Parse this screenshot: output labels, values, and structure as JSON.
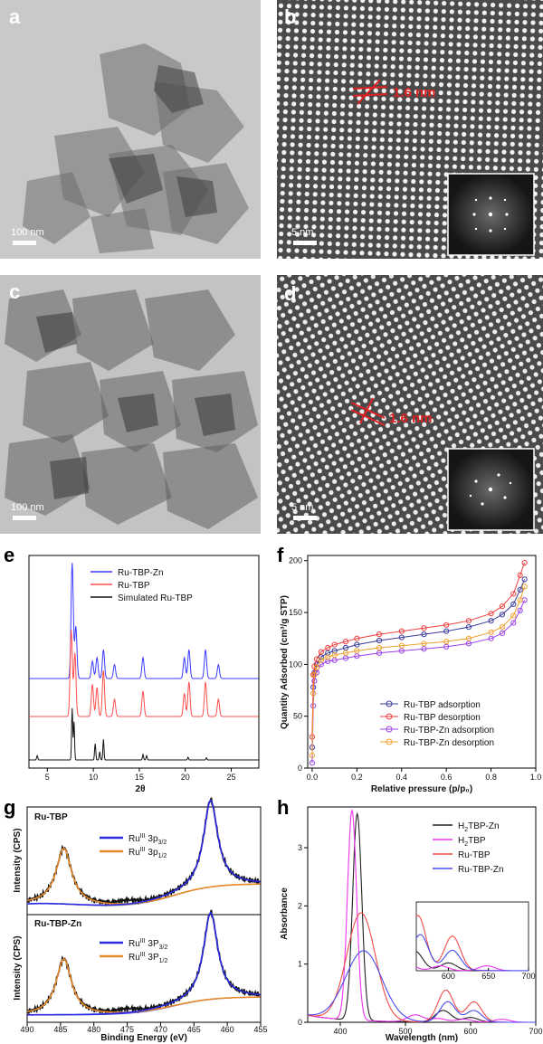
{
  "panels": {
    "a": {
      "letter": "a",
      "scale_label": "100 nm"
    },
    "b": {
      "letter": "b",
      "scale_label": "5 nm",
      "lattice_label": "1.6 nm"
    },
    "c": {
      "letter": "c",
      "scale_label": "100 nm"
    },
    "d": {
      "letter": "d",
      "scale_label": "5 nm",
      "lattice_label": "1.6 nm"
    },
    "e": {
      "letter": "e"
    },
    "f": {
      "letter": "f"
    },
    "g": {
      "letter": "g"
    },
    "h": {
      "letter": "h"
    }
  },
  "chart_data": [
    {
      "panel": "e",
      "type": "line",
      "xlabel": "2θ",
      "ylabel": "",
      "xlim": [
        3,
        28
      ],
      "xticks": [
        5,
        10,
        15,
        20,
        25
      ],
      "legend_position": "top-right",
      "series": [
        {
          "name": "Ru-TBP-Zn",
          "color": "#3b3bff",
          "offset": 2.0,
          "peaks": [
            [
              7.7,
              1.0
            ],
            [
              8.1,
              0.45
            ],
            [
              9.9,
              0.15
            ],
            [
              10.4,
              0.18
            ],
            [
              11.1,
              0.25
            ],
            [
              12.3,
              0.12
            ],
            [
              15.4,
              0.18
            ],
            [
              19.9,
              0.18
            ],
            [
              20.4,
              0.25
            ],
            [
              22.2,
              0.25
            ],
            [
              23.6,
              0.12
            ]
          ]
        },
        {
          "name": "Ru-TBP",
          "color": "#ff4d4d",
          "offset": 1.0,
          "peaks": [
            [
              7.6,
              0.75
            ],
            [
              8.0,
              0.55
            ],
            [
              9.9,
              0.28
            ],
            [
              10.4,
              0.25
            ],
            [
              11.1,
              0.4
            ],
            [
              12.3,
              0.15
            ],
            [
              15.4,
              0.22
            ],
            [
              19.9,
              0.2
            ],
            [
              20.4,
              0.3
            ],
            [
              22.2,
              0.3
            ],
            [
              23.6,
              0.15
            ]
          ]
        },
        {
          "name": "Simulated Ru-TBP",
          "color": "#111111",
          "offset": 0.0,
          "peaks": [
            [
              3.9,
              0.08
            ],
            [
              7.7,
              0.95
            ],
            [
              7.9,
              0.7
            ],
            [
              10.2,
              0.3
            ],
            [
              10.7,
              0.15
            ],
            [
              11.1,
              0.38
            ],
            [
              15.4,
              0.1
            ],
            [
              15.8,
              0.08
            ],
            [
              20.3,
              0.05
            ],
            [
              22.3,
              0.04
            ]
          ]
        }
      ]
    },
    {
      "panel": "f",
      "type": "line",
      "xlabel": "Relative pressure (p/p₀)",
      "ylabel": "Quantity Adsorbed (cm³/g STP)",
      "xlim": [
        -0.02,
        1.0
      ],
      "ylim": [
        0,
        205
      ],
      "xticks": [
        "0.0",
        "0.2",
        "0.4",
        "0.6",
        "0.8",
        "1.0"
      ],
      "yticks": [
        0,
        50,
        100,
        150,
        200
      ],
      "legend_position": "bottom-right",
      "x": [
        0.0,
        0.005,
        0.01,
        0.02,
        0.04,
        0.07,
        0.1,
        0.15,
        0.2,
        0.3,
        0.4,
        0.5,
        0.6,
        0.7,
        0.8,
        0.85,
        0.9,
        0.93,
        0.95
      ],
      "series": [
        {
          "name": "Ru-TBP adsorption",
          "color": "#3a3a9e",
          "values": [
            20,
            78,
            92,
            100,
            107,
            111,
            113,
            116,
            119,
            123,
            126,
            129,
            132,
            136,
            142,
            148,
            158,
            172,
            182
          ]
        },
        {
          "name": "Ru-TBP desorption",
          "color": "#ef3f3f",
          "values": [
            30,
            90,
            98,
            105,
            112,
            116,
            119,
            122,
            125,
            129,
            132,
            135,
            138,
            142,
            149,
            156,
            168,
            186,
            198
          ]
        },
        {
          "name": "Ru-TBP-Zn adsorption",
          "color": "#9a40e8",
          "values": [
            5,
            60,
            84,
            92,
            100,
            103,
            104,
            106,
            108,
            111,
            113,
            115,
            117,
            120,
            125,
            130,
            140,
            152,
            162
          ]
        },
        {
          "name": "Ru-TBP-Zn desorption",
          "color": "#f0a030",
          "values": [
            12,
            72,
            90,
            97,
            104,
            107,
            109,
            111,
            113,
            116,
            118,
            120,
            122,
            125,
            131,
            136,
            147,
            162,
            175
          ]
        }
      ]
    },
    {
      "panel": "g",
      "type": "line",
      "xlabel": "Binding Energy (eV)",
      "ylabel": "Intensity (CPS)",
      "xlim": [
        490,
        455
      ],
      "xticks": [
        490,
        485,
        480,
        475,
        470,
        465,
        460,
        455
      ],
      "subplots": [
        {
          "title": "Ru-TBP",
          "legend": [
            {
              "pre": "Ru",
              "sup": "III",
              "main": " 3p",
              "sub": "3/2",
              "color": "#2a2ae0"
            },
            {
              "pre": "Ru",
              "sup": "III",
              "main": " 3p",
              "sub": "1/2",
              "color": "#e88a2a"
            }
          ]
        },
        {
          "title": "Ru-TBP-Zn",
          "legend": [
            {
              "pre": "Ru",
              "sup": "III",
              "main": " 3P",
              "sub": "3/2",
              "color": "#2a2ae0"
            },
            {
              "pre": "Ru",
              "sup": "III",
              "main": " 3P",
              "sub": "1/2",
              "color": "#e88a2a"
            }
          ]
        }
      ],
      "peaks": {
        "p1_2": 484.5,
        "p3_2": 462.5
      }
    },
    {
      "panel": "h",
      "type": "line",
      "xlabel": "Wavelength (nm)",
      "ylabel": "Absorbance",
      "xlim": [
        350,
        700
      ],
      "ylim": [
        0,
        3.7
      ],
      "xticks": [
        400,
        500,
        600,
        700
      ],
      "yticks": [
        0,
        1,
        2,
        3
      ],
      "inset_xticks": [
        600,
        650,
        700
      ],
      "legend_position": "top-right",
      "series": [
        {
          "name_main": "H",
          "name_sub": "2",
          "name_rest": "TBP-Zn",
          "color": "#222222",
          "soret": [
            426,
            3.55,
            7
          ],
          "q": [
            [
              558,
              0.2
            ],
            [
              600,
              0.08
            ]
          ]
        },
        {
          "name_main": "H",
          "name_sub": "2",
          "name_rest": "TBP",
          "color": "#ee33ee",
          "soret": [
            418,
            3.6,
            7
          ],
          "q": [
            [
              515,
              0.12
            ],
            [
              550,
              0.06
            ],
            [
              590,
              0.05
            ],
            [
              648,
              0.05
            ]
          ]
        },
        {
          "name_main": "Ru-TBP",
          "name_sub": "",
          "name_rest": "",
          "color": "#ef4a4a",
          "soret": [
            432,
            1.85,
            22
          ],
          "q": [
            [
              562,
              0.55
            ],
            [
              605,
              0.35
            ]
          ]
        },
        {
          "name_main": "Ru-TBP-Zn",
          "name_sub": "",
          "name_rest": "",
          "color": "#4a4af0",
          "soret": [
            436,
            1.2,
            28
          ],
          "q": [
            [
              565,
              0.35
            ],
            [
              605,
              0.2
            ]
          ]
        }
      ]
    }
  ]
}
